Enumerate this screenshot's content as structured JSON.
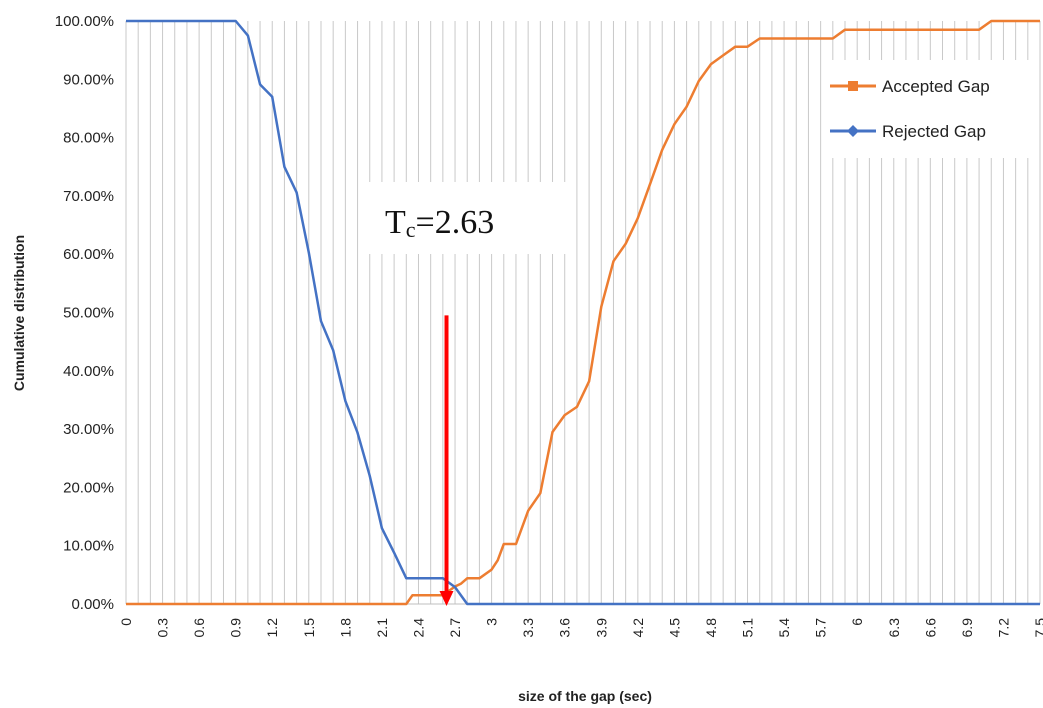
{
  "chart_data": {
    "type": "line",
    "title": "",
    "xlabel": "size of the gap (sec)",
    "ylabel": "Cumulative distribution",
    "ylim": [
      0,
      100
    ],
    "xlim": [
      0,
      7.5
    ],
    "y_tick_values": [
      0,
      10,
      20,
      30,
      40,
      50,
      60,
      70,
      80,
      90,
      100
    ],
    "y_tick_labels": [
      "0.00%",
      "10.00%",
      "20.00%",
      "30.00%",
      "40.00%",
      "50.00%",
      "60.00%",
      "70.00%",
      "80.00%",
      "90.00%",
      "100.00%"
    ],
    "x_tick_values": [
      0,
      0.3,
      0.6,
      0.9,
      1.2,
      1.5,
      1.8,
      2.1,
      2.4,
      2.7,
      3,
      3.3,
      3.6,
      3.9,
      4.2,
      4.5,
      4.8,
      5.1,
      5.4,
      5.7,
      6,
      6.3,
      6.6,
      6.9,
      7.2,
      7.5
    ],
    "x_tick_labels": [
      "0",
      "0.3",
      "0.6",
      "0.9",
      "1.2",
      "1.5",
      "1.8",
      "2.1",
      "2.4",
      "2.7",
      "3",
      "3.3",
      "3.6",
      "3.9",
      "4.2",
      "4.5",
      "4.8",
      "5.1",
      "5.4",
      "5.7",
      "6",
      "6.3",
      "6.6",
      "6.9",
      "7.2",
      "7.5"
    ],
    "grid": "vertical",
    "legend": "top-right",
    "series": [
      {
        "name": "Accepted Gap",
        "color": "#ED7D31",
        "marker": "square",
        "x": [
          0,
          2.3,
          2.35,
          2.4,
          2.5,
          2.6,
          2.7,
          2.75,
          2.8,
          2.9,
          3.0,
          3.05,
          3.1,
          3.15,
          3.2,
          3.3,
          3.4,
          3.5,
          3.6,
          3.7,
          3.8,
          3.9,
          4.0,
          4.1,
          4.2,
          4.3,
          4.4,
          4.5,
          4.6,
          4.7,
          4.8,
          4.9,
          5.0,
          5.1,
          5.2,
          5.3,
          5.4,
          5.5,
          5.6,
          5.7,
          5.8,
          5.9,
          6.0,
          6.5,
          6.9,
          7.0,
          7.1,
          7.2,
          7.5
        ],
        "y": [
          0,
          0,
          1.5,
          1.5,
          1.5,
          1.5,
          3,
          3.5,
          4.4,
          4.4,
          5.9,
          7.5,
          10.3,
          10.3,
          10.3,
          16,
          19,
          29.5,
          32.4,
          33.8,
          38.2,
          51,
          58.8,
          61.8,
          66.2,
          72,
          77.9,
          82.3,
          85.3,
          89.7,
          92.6,
          94.1,
          95.6,
          95.6,
          97,
          97,
          97,
          97,
          97,
          97,
          97,
          98.5,
          98.5,
          98.5,
          98.5,
          98.5,
          100,
          100,
          100
        ]
      },
      {
        "name": "Rejected Gap",
        "color": "#4472C4",
        "marker": "diamond",
        "x": [
          0,
          0.3,
          0.6,
          0.9,
          1.0,
          1.1,
          1.2,
          1.3,
          1.4,
          1.5,
          1.6,
          1.7,
          1.8,
          1.9,
          2.0,
          2.1,
          2.2,
          2.3,
          2.4,
          2.5,
          2.6,
          2.7,
          2.8,
          3.0,
          4.0,
          5.0,
          6.0,
          7.0,
          7.5
        ],
        "y": [
          100,
          100,
          100,
          100,
          97.5,
          89.1,
          87,
          75,
          70.6,
          60.3,
          48.5,
          43.5,
          34.8,
          29.4,
          22,
          13,
          8.8,
          4.4,
          4.4,
          4.4,
          4.4,
          2.9,
          0,
          0,
          0,
          0,
          0,
          0,
          0
        ]
      }
    ],
    "annotations": [
      {
        "type": "arrow",
        "x": 2.63,
        "y_from": 49.5,
        "y_to": 0,
        "color": "#FF0000"
      },
      {
        "type": "text",
        "prefix": "T",
        "subscript": "c",
        "suffix": "=2.63"
      }
    ]
  }
}
